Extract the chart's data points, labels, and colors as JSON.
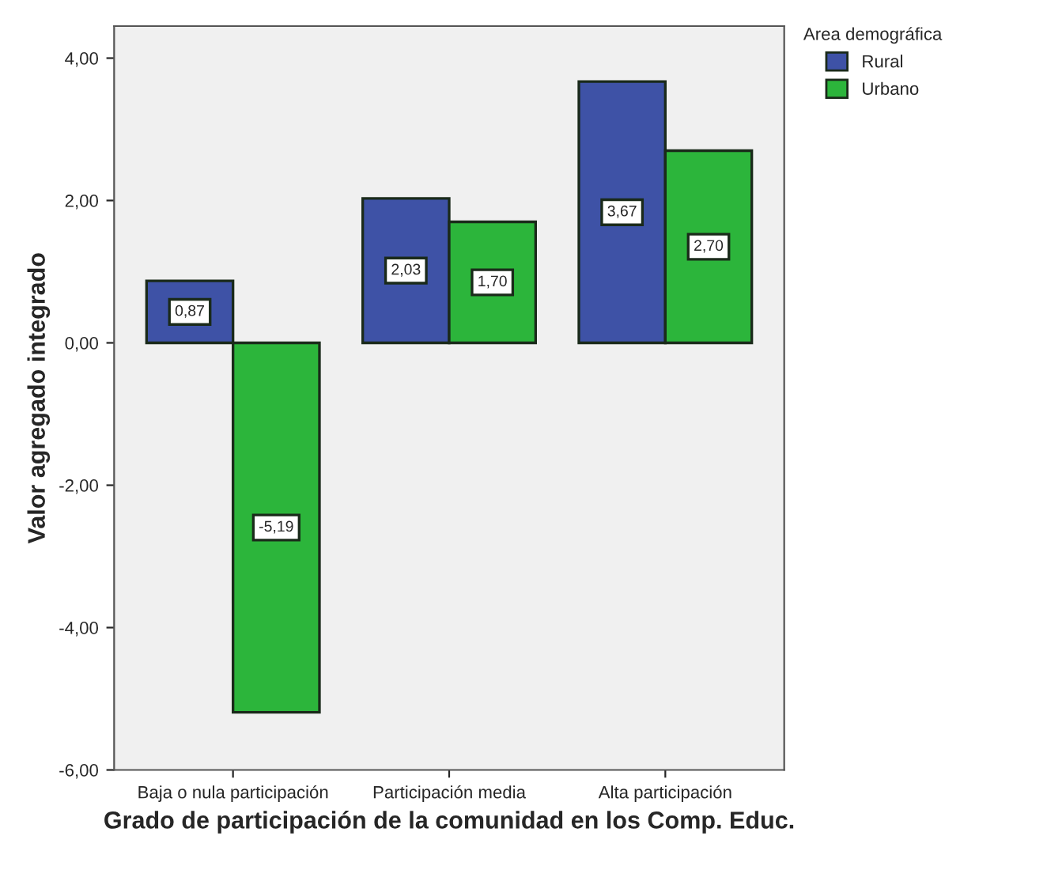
{
  "chart_data": {
    "type": "bar",
    "xlabel": "Grado de participación de la comunidad en los Comp. Educ.",
    "ylabel": "Valor agregado integrado",
    "legend_title": "Area demográfica",
    "categories": [
      "Baja o nula participación",
      "Participación media",
      "Alta participación"
    ],
    "series": [
      {
        "name": "Rural",
        "color": "#3e52a6",
        "values": [
          0.87,
          2.03,
          3.67
        ],
        "value_labels": [
          "0,87",
          "2,03",
          "3,67"
        ]
      },
      {
        "name": "Urbano",
        "color": "#2cb53b",
        "values": [
          -5.19,
          1.7,
          2.7
        ],
        "value_labels": [
          "-5,19",
          "1,70",
          "2,70"
        ]
      }
    ],
    "ylim": [
      -6,
      4.45
    ],
    "yticks": [
      {
        "value": -6,
        "label": "-6,00"
      },
      {
        "value": -4,
        "label": "-4,00"
      },
      {
        "value": -2,
        "label": "-2,00"
      },
      {
        "value": 0,
        "label": "0,00"
      },
      {
        "value": 2,
        "label": "2,00"
      },
      {
        "value": 4,
        "label": "4,00"
      }
    ],
    "grid": false,
    "legend": "top right"
  }
}
